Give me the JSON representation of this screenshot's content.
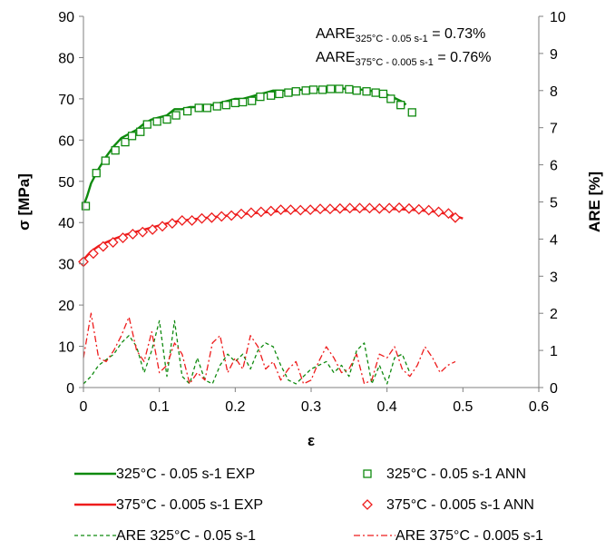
{
  "chart_data": {
    "type": "line",
    "xlabel": "ε",
    "ylabel": "σ [MPa]",
    "y2label": "ARE [%]",
    "xlim": [
      0,
      0.6
    ],
    "ylim": [
      0,
      90
    ],
    "y2lim": [
      0,
      10
    ],
    "xticks": [
      "0",
      "0.1",
      "0.2",
      "0.3",
      "0.4",
      "0.5",
      "0.6"
    ],
    "yticks": [
      "0",
      "10",
      "20",
      "30",
      "40",
      "50",
      "60",
      "70",
      "80",
      "90"
    ],
    "y2ticks": [
      "0",
      "1",
      "2",
      "3",
      "4",
      "5",
      "6",
      "7",
      "8",
      "9",
      "10"
    ],
    "grid": false,
    "legend_placement": "bottom",
    "annotations": [
      {
        "main": "AARE",
        "sub": "325°C - 0.05 s-1",
        "value": " = 0.73%"
      },
      {
        "main": "AARE",
        "sub": "375°C - 0.005 s-1",
        "value": " = 0.76%"
      }
    ],
    "colors": {
      "green": "#0f8a0f",
      "red": "#ee1c1c"
    },
    "series": [
      {
        "name": "325°C - 0.05 s-1 EXP",
        "axis": "left",
        "style": "line",
        "color": "#0f8a0f",
        "x": [
          0,
          0.005,
          0.01,
          0.02,
          0.03,
          0.04,
          0.05,
          0.06,
          0.07,
          0.08,
          0.09,
          0.1,
          0.11,
          0.12,
          0.13,
          0.14,
          0.15,
          0.16,
          0.17,
          0.18,
          0.19,
          0.2,
          0.21,
          0.22,
          0.23,
          0.24,
          0.25,
          0.26,
          0.27,
          0.28,
          0.29,
          0.3,
          0.31,
          0.32,
          0.33,
          0.34,
          0.35,
          0.36,
          0.37,
          0.38,
          0.39,
          0.4,
          0.41,
          0.42,
          0.425
        ],
        "y": [
          44,
          46.5,
          49.5,
          53,
          56,
          58.5,
          60.5,
          61.5,
          62.5,
          64,
          65,
          65.5,
          66,
          67.5,
          67.5,
          68,
          68,
          68.5,
          68.5,
          69,
          69.5,
          70,
          70,
          70.5,
          71,
          71.5,
          72,
          72,
          72,
          72.2,
          72.2,
          72.2,
          72.3,
          72.4,
          72.4,
          72.5,
          72.4,
          72.3,
          72.2,
          71.9,
          71.5,
          71,
          70.2,
          69.3,
          68.6
        ]
      },
      {
        "name": "325°C - 0.05 s-1 ANN",
        "axis": "left",
        "style": "square",
        "color": "#0f8a0f",
        "x": [
          0.003,
          0.017,
          0.029,
          0.042,
          0.055,
          0.064,
          0.075,
          0.084,
          0.097,
          0.11,
          0.122,
          0.137,
          0.152,
          0.163,
          0.176,
          0.188,
          0.2,
          0.21,
          0.222,
          0.233,
          0.247,
          0.258,
          0.27,
          0.28,
          0.293,
          0.303,
          0.315,
          0.326,
          0.337,
          0.35,
          0.36,
          0.373,
          0.385,
          0.395,
          0.405,
          0.418,
          0.433
        ],
        "y": [
          44,
          52,
          55,
          57.5,
          59.5,
          61,
          62,
          63.8,
          64.5,
          65,
          66,
          67,
          67.8,
          67.8,
          68.2,
          68.5,
          69,
          69.2,
          69.5,
          70.5,
          70.8,
          71.2,
          71.5,
          71.8,
          72,
          72.2,
          72.2,
          72.4,
          72.4,
          72.3,
          72,
          71.8,
          71.5,
          71.2,
          70,
          68.5,
          66.7
        ]
      },
      {
        "name": "375°C - 0.005 s-1 EXP",
        "axis": "left",
        "style": "line",
        "color": "#ee1c1c",
        "x": [
          0,
          0.01,
          0.02,
          0.03,
          0.04,
          0.05,
          0.06,
          0.07,
          0.08,
          0.09,
          0.1,
          0.11,
          0.12,
          0.14,
          0.16,
          0.18,
          0.2,
          0.22,
          0.24,
          0.26,
          0.28,
          0.3,
          0.32,
          0.34,
          0.36,
          0.38,
          0.4,
          0.42,
          0.44,
          0.46,
          0.47,
          0.48,
          0.49,
          0.5
        ],
        "y": [
          31,
          33,
          34.3,
          35.2,
          36,
          36.7,
          37.3,
          37.8,
          38.3,
          38.8,
          39.3,
          39.8,
          40.2,
          40.7,
          41.1,
          41.5,
          41.9,
          42.2,
          42.5,
          42.8,
          42.9,
          43,
          43.1,
          43.2,
          43.2,
          43.3,
          43.3,
          43.2,
          43,
          42.7,
          42.4,
          42,
          41.6,
          41
        ]
      },
      {
        "name": "375°C - 0.005 s-1 ANN",
        "axis": "left",
        "style": "diamond",
        "color": "#ee1c1c",
        "x": [
          0,
          0.013,
          0.026,
          0.039,
          0.052,
          0.065,
          0.078,
          0.091,
          0.104,
          0.117,
          0.13,
          0.143,
          0.156,
          0.169,
          0.182,
          0.195,
          0.208,
          0.221,
          0.234,
          0.247,
          0.26,
          0.273,
          0.286,
          0.299,
          0.312,
          0.325,
          0.338,
          0.351,
          0.364,
          0.377,
          0.39,
          0.403,
          0.416,
          0.429,
          0.442,
          0.455,
          0.468,
          0.481,
          0.49
        ],
        "y": [
          30.5,
          32.5,
          34.2,
          35.2,
          36.3,
          37.2,
          37.7,
          38.3,
          39.1,
          39.8,
          40.5,
          40.5,
          41,
          41.2,
          41.5,
          41.7,
          42.1,
          42.4,
          42.6,
          42.8,
          43.1,
          43.1,
          43,
          43.1,
          43.3,
          43.3,
          43.4,
          43.5,
          43.5,
          43.5,
          43.4,
          43.5,
          43.6,
          43.4,
          43.2,
          43,
          42.6,
          42.2,
          41.2
        ]
      },
      {
        "name": "ARE 325°C - 0.05 s-1",
        "axis": "right",
        "style": "dashed",
        "color": "#0f8a0f",
        "x": [
          0,
          0.01,
          0.02,
          0.03,
          0.04,
          0.05,
          0.06,
          0.07,
          0.08,
          0.09,
          0.1,
          0.11,
          0.12,
          0.13,
          0.14,
          0.15,
          0.16,
          0.17,
          0.18,
          0.19,
          0.2,
          0.21,
          0.22,
          0.23,
          0.24,
          0.25,
          0.26,
          0.27,
          0.28,
          0.29,
          0.3,
          0.31,
          0.32,
          0.33,
          0.34,
          0.35,
          0.36,
          0.37,
          0.38,
          0.39,
          0.4,
          0.41,
          0.42,
          0.43
        ],
        "y": [
          0.1,
          0.3,
          0.6,
          0.75,
          0.9,
          1.2,
          1.4,
          1.1,
          0.4,
          1.0,
          1.8,
          0.3,
          1.8,
          0.3,
          0.1,
          0.8,
          0.2,
          0.1,
          0.6,
          0.9,
          0.7,
          0.9,
          0.5,
          1.0,
          1.2,
          1.1,
          0.6,
          0.2,
          0.1,
          0.3,
          0.5,
          0.6,
          0.7,
          0.4,
          0.6,
          0.3,
          1.0,
          1.2,
          0.1,
          0.6,
          0.1,
          0.8,
          0.9,
          0.4
        ]
      },
      {
        "name": "ARE 375°C - 0.005 s-1",
        "axis": "right",
        "style": "dashdot",
        "color": "#ee1c1c",
        "x": [
          0,
          0.01,
          0.02,
          0.03,
          0.04,
          0.05,
          0.06,
          0.07,
          0.08,
          0.09,
          0.1,
          0.11,
          0.12,
          0.13,
          0.14,
          0.15,
          0.16,
          0.17,
          0.18,
          0.19,
          0.2,
          0.21,
          0.22,
          0.23,
          0.24,
          0.25,
          0.26,
          0.27,
          0.28,
          0.29,
          0.3,
          0.31,
          0.32,
          0.33,
          0.34,
          0.35,
          0.36,
          0.37,
          0.38,
          0.39,
          0.4,
          0.41,
          0.42,
          0.43,
          0.44,
          0.45,
          0.46,
          0.47,
          0.48,
          0.49
        ],
        "y": [
          0.8,
          2.0,
          0.8,
          0.7,
          1.0,
          1.4,
          1.9,
          1.0,
          0.7,
          1.5,
          0.4,
          0.6,
          1.2,
          0.9,
          0.1,
          0.4,
          0.2,
          1.2,
          1.4,
          0.4,
          0.8,
          0.5,
          1.4,
          1.1,
          0.5,
          0.7,
          0.2,
          0.5,
          0.7,
          0.1,
          0.2,
          0.7,
          1.1,
          0.8,
          0.4,
          0.5,
          0.9,
          0.1,
          0.2,
          0.9,
          0.8,
          1.1,
          0.5,
          0.3,
          0.6,
          1.1,
          0.8,
          0.4,
          0.6,
          0.7
        ]
      }
    ]
  }
}
